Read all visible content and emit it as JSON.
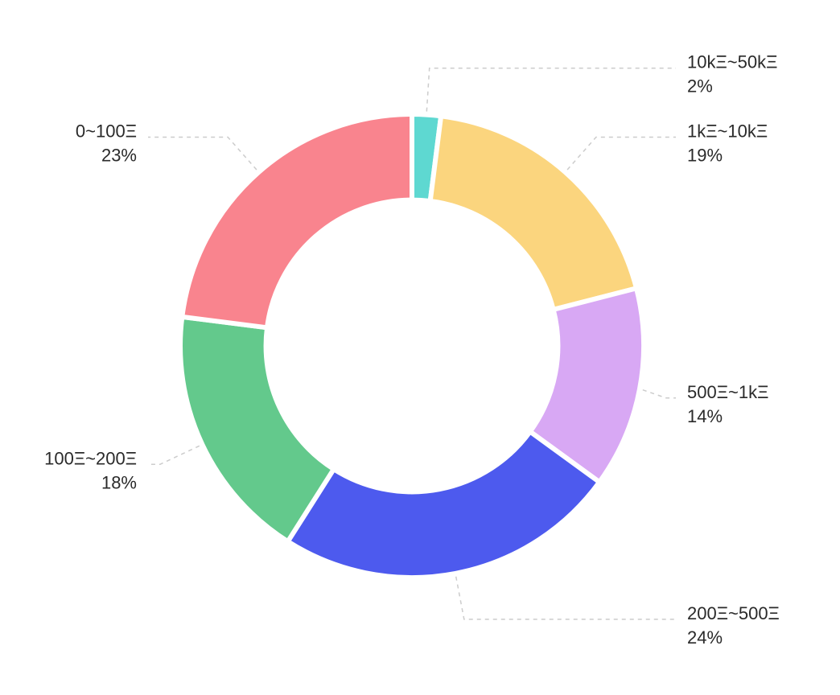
{
  "chart_data": {
    "type": "pie",
    "subtype": "donut",
    "title": "",
    "categories": [
      "10kΞ~50kΞ",
      "1kΞ~10kΞ",
      "500Ξ~1kΞ",
      "200Ξ~500Ξ",
      "100Ξ~200Ξ",
      "0~100Ξ"
    ],
    "values": [
      2,
      19,
      14,
      24,
      18,
      23
    ],
    "segments": [
      {
        "label": "10kΞ~50kΞ",
        "value": 2,
        "display": "2%",
        "color": "#5ED8D1"
      },
      {
        "label": "1kΞ~10kΞ",
        "value": 19,
        "display": "19%",
        "color": "#FBD57E"
      },
      {
        "label": "500Ξ~1kΞ",
        "value": 14,
        "display": "14%",
        "color": "#D8A8F4"
      },
      {
        "label": "200Ξ~500Ξ",
        "value": 24,
        "display": "24%",
        "color": "#4D5AEE"
      },
      {
        "label": "100Ξ~200Ξ",
        "value": 18,
        "display": "18%",
        "color": "#63C98C"
      },
      {
        "label": "0~100Ξ",
        "value": 23,
        "display": "23%",
        "color": "#F9848E"
      }
    ],
    "start_angle_deg": 0,
    "direction": "clockwise",
    "inner_radius_ratio": 0.63,
    "grid": false,
    "legend_position": "none",
    "label_style": {
      "line_color": "#cccccc",
      "line_dash": "dashed",
      "text_color": "#2a2a2a"
    },
    "background_color": "#ffffff"
  }
}
